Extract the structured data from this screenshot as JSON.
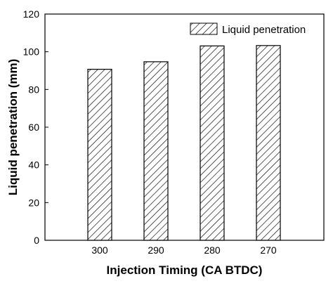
{
  "chart_data": {
    "type": "bar",
    "categories": [
      "300",
      "290",
      "280",
      "270"
    ],
    "series": [
      {
        "name": "Liquid penetration",
        "values": [
          90.7,
          94.7,
          103.1,
          103.3
        ]
      }
    ],
    "xlabel": "Injection Timing (CA BTDC)",
    "ylabel": "Liquid penetration (mm)",
    "ylim": [
      0,
      120
    ],
    "yticks": [
      "0",
      "20",
      "40",
      "60",
      "80",
      "100",
      "120"
    ],
    "grid": false,
    "legend": "top-right",
    "bar_fill": "hatched",
    "colors": {
      "bar_stroke": "#000000",
      "hatch": "#000000",
      "background": "#ffffff"
    }
  }
}
